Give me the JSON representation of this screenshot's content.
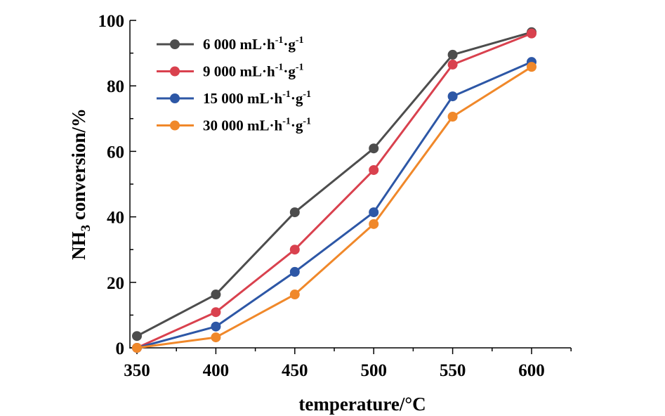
{
  "chart_data": {
    "type": "line",
    "title": "",
    "xlabel": "temperature/°C",
    "ylabel_main": "NH",
    "ylabel_sub": "3",
    "ylabel_rest": " conversion/%",
    "xlim": [
      350,
      625
    ],
    "ylim": [
      0,
      100
    ],
    "xticks": [
      350,
      400,
      450,
      500,
      550,
      600
    ],
    "xticks_minor": [
      375,
      425,
      475,
      525,
      575,
      625
    ],
    "yticks": [
      0,
      20,
      40,
      60,
      80,
      100
    ],
    "yticks_minor": [
      10,
      30,
      50,
      70,
      90
    ],
    "grid": false,
    "legend_position": "top-left",
    "x": [
      350,
      400,
      450,
      500,
      550,
      600
    ],
    "series": [
      {
        "name": "6 000 mL·h-1·g-1",
        "label_main": "6 000 mL·h",
        "sup1": "-1",
        "mid": "·g",
        "sup2": "-1",
        "color": "#4d4d4d",
        "values": [
          3.6,
          16.3,
          41.4,
          60.9,
          89.5,
          96.4
        ]
      },
      {
        "name": "9 000 mL·h-1·g-1",
        "label_main": "9 000 mL·h",
        "sup1": "-1",
        "mid": "·g",
        "sup2": "-1",
        "color": "#d9414e",
        "values": [
          0,
          10.9,
          30.0,
          54.3,
          86.5,
          96.0
        ]
      },
      {
        "name": "15 000 mL·h-1·g-1",
        "label_main": "15 000 mL·h",
        "sup1": "-1",
        "mid": "·g",
        "sup2": "-1",
        "color": "#2d57a6",
        "values": [
          0,
          6.5,
          23.2,
          41.4,
          76.8,
          87.3
        ]
      },
      {
        "name": "30 000 mL·h-1·g-1",
        "label_main": "30 000 mL·h",
        "sup1": "-1",
        "mid": "·g",
        "sup2": "-1",
        "color": "#f0882a",
        "values": [
          0,
          3.2,
          16.3,
          37.8,
          70.6,
          85.8
        ]
      }
    ]
  }
}
